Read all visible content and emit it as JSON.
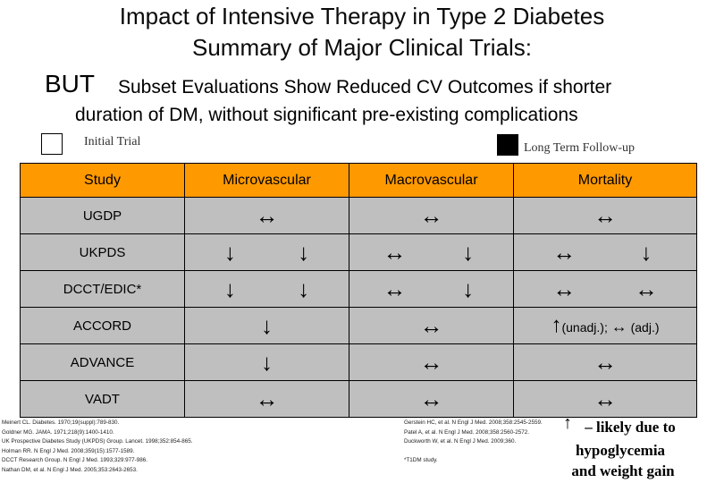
{
  "title": {
    "line1": "Impact of Intensive Therapy in Type 2 Diabetes",
    "line2": "Summary of Major Clinical Trials:",
    "but": "BUT",
    "subtitle_line1": "Subset Evaluations Show Reduced CV Outcomes if shorter",
    "subtitle_line2": "duration of DM, without significant pre-existing complications"
  },
  "legend": {
    "initial_label": "Initial Trial",
    "followup_label": "Long Term Follow-up",
    "initial_color": "#ffffff",
    "followup_color": "#000000"
  },
  "table": {
    "headers": [
      "Study",
      "Microvascular",
      "Macrovascular",
      "Mortality"
    ],
    "header_color": "#ff9900",
    "cell_color": "#bfbfbf",
    "rows": [
      {
        "study": "UGDP",
        "micro": "↔",
        "macro": "↔",
        "mort": "↔"
      },
      {
        "study": "UKPDS",
        "micro_initial": "↓",
        "micro_followup": "↓",
        "macro_initial": "↔",
        "macro_followup": "↓",
        "mort_initial": "↔",
        "mort_followup": "↓"
      },
      {
        "study": "DCCT/EDIC*",
        "micro_initial": "↓",
        "micro_followup": "↓",
        "macro_initial": "↔",
        "macro_followup": "↓",
        "mort_initial": "↔",
        "mort_followup": "↔"
      },
      {
        "study": "ACCORD",
        "micro": "↓",
        "macro": "↔",
        "mort_up": "↑",
        "mort_unadj": "(unadj.);",
        "mort_sym": "↔",
        "mort_adj": "(adj.)"
      },
      {
        "study": "ADVANCE",
        "micro": "↓",
        "macro": "↔",
        "mort": "↔"
      },
      {
        "study": "VADT",
        "micro": "↔",
        "macro": "↔",
        "mort": "↔"
      }
    ]
  },
  "references_left": [
    "Meinert CL. Diabetes. 1970;19(suppl):789-830.",
    "Goldner MG. JAMA. 1971;218(9):1400-1410.",
    "UK Prospective Diabetes Study (UKPDS) Group. Lancet. 1998;352:854-865.",
    "Holman RR. N Engl J Med. 2008;359(15):1577-1589.",
    "DCCT Research Group. N Engl J Med. 1993;329:977-986.",
    "Nathan DM, et al. N Engl J Med. 2005;353:2643-2653."
  ],
  "references_right": [
    "Gerstein HC, et al. N Engl J Med. 2008;358:2545-2559.",
    "Patel A, et al. N Engl J Med. 2008;358:2560-2572.",
    "Duckworth W, et al. N Engl J Med. 2009;360."
  ],
  "footnote": "*T1DM study.",
  "likely_note": {
    "arrow": "↑",
    "line1": "– likely  due to",
    "line2": "hypoglycemia",
    "line3": "and weight gain"
  }
}
